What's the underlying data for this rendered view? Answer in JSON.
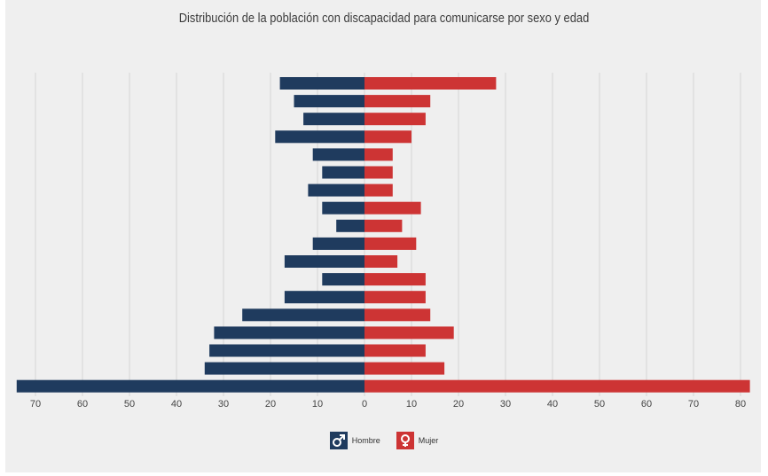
{
  "chart_data": {
    "type": "bar",
    "orientation": "horizontal-population-pyramid",
    "title": "Distribución de la población con discapacidad para comunicarse por sexo y edad",
    "xlabel": "",
    "ylabel": "",
    "xlim": [
      -74,
      82
    ],
    "x_ticks": [
      {
        "value": -70,
        "label": "70"
      },
      {
        "value": -60,
        "label": "60"
      },
      {
        "value": -50,
        "label": "50"
      },
      {
        "value": -40,
        "label": "40"
      },
      {
        "value": -30,
        "label": "30"
      },
      {
        "value": -20,
        "label": "20"
      },
      {
        "value": -10,
        "label": "10"
      },
      {
        "value": 0,
        "label": "0"
      },
      {
        "value": 10,
        "label": "10"
      },
      {
        "value": 20,
        "label": "20"
      },
      {
        "value": 30,
        "label": "30"
      },
      {
        "value": 40,
        "label": "40"
      },
      {
        "value": 50,
        "label": "50"
      },
      {
        "value": 60,
        "label": "60"
      },
      {
        "value": 70,
        "label": "70"
      },
      {
        "value": 80,
        "label": "80"
      }
    ],
    "grid": "vertical",
    "legend_position": "bottom-center",
    "series": [
      {
        "name": "Hombre",
        "color": "#1f3b5e",
        "icon": "male-symbol-icon",
        "values": [
          18,
          15,
          13,
          19,
          11,
          9,
          12,
          9,
          6,
          11,
          17,
          9,
          17,
          26,
          32,
          33,
          34,
          74
        ]
      },
      {
        "name": "Mujer",
        "color": "#cd3434",
        "icon": "female-symbol-icon",
        "values": [
          28,
          14,
          13,
          10,
          6,
          6,
          6,
          12,
          8,
          11,
          7,
          13,
          13,
          14,
          19,
          13,
          17,
          82
        ]
      }
    ]
  }
}
